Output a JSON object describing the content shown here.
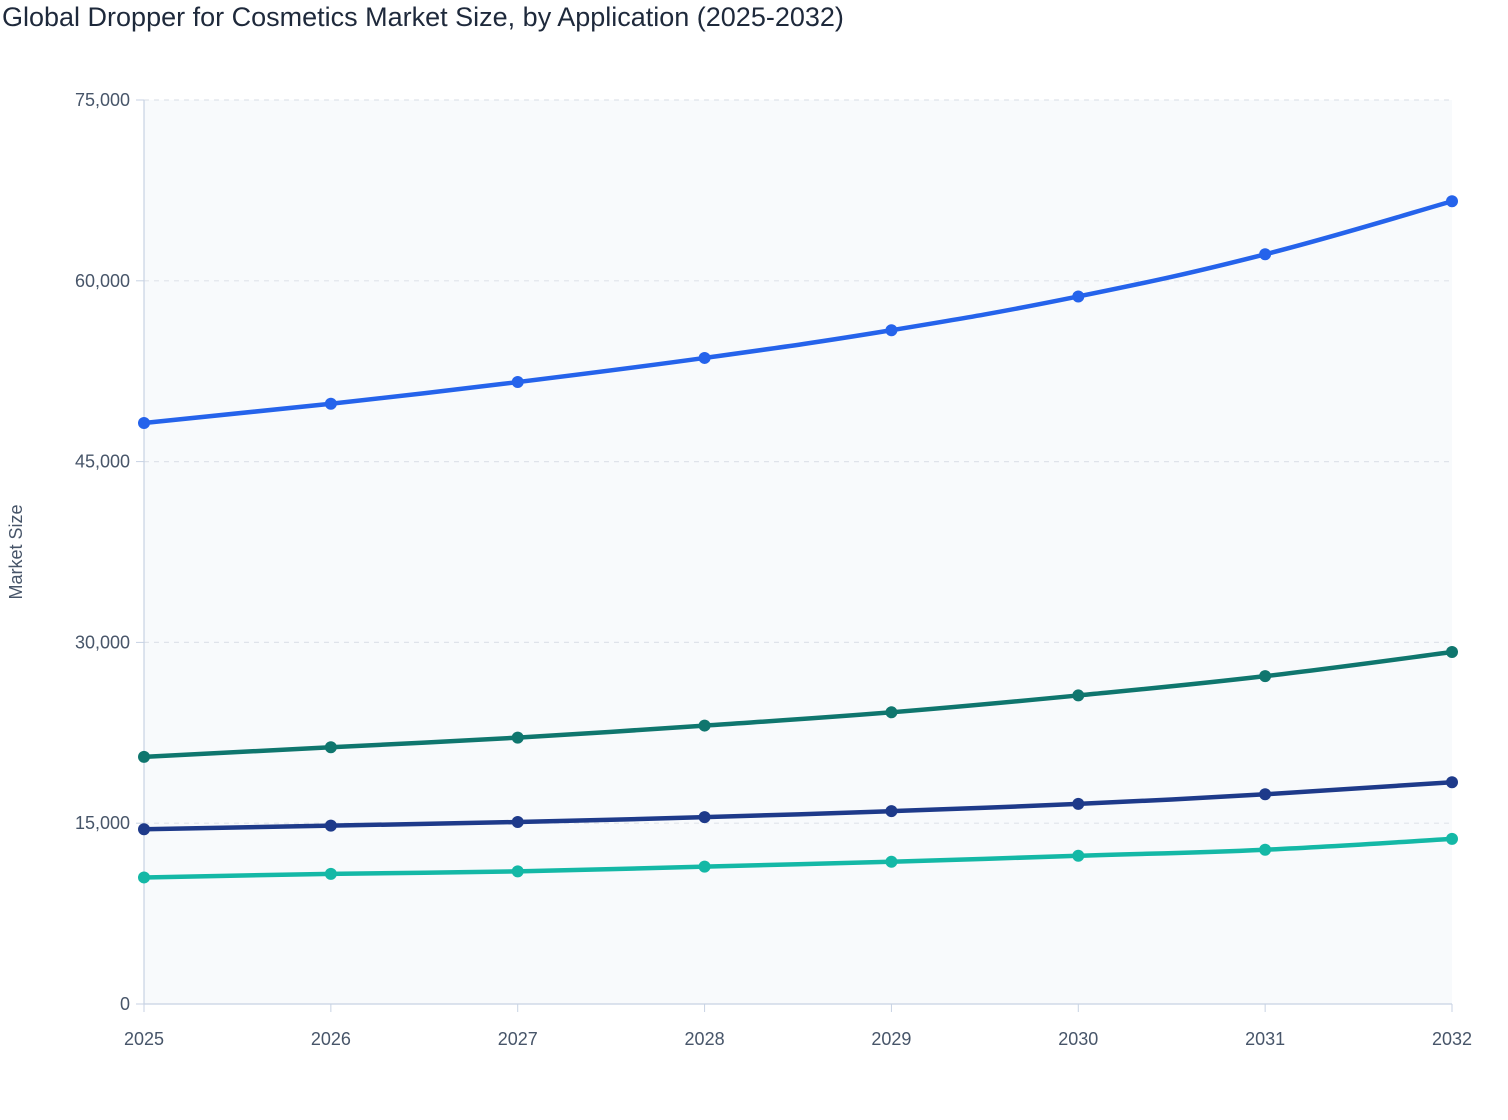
{
  "chart_data": {
    "type": "line",
    "title": "Global Dropper for Cosmetics Market Size, by Application (2025-2032)",
    "xlabel": "",
    "ylabel": "Market Size",
    "x": [
      "2025",
      "2026",
      "2027",
      "2028",
      "2029",
      "2030",
      "2031",
      "2032"
    ],
    "ylim": [
      0,
      75000
    ],
    "yticks": [
      0,
      15000,
      30000,
      45000,
      60000,
      75000
    ],
    "ytick_labels": [
      "0",
      "15,000",
      "30,000",
      "45,000",
      "60,000",
      "75,000"
    ],
    "grid": true,
    "legend": "none",
    "series": [
      {
        "name": "Series 1",
        "color": "#2563eb",
        "values": [
          48200,
          49800,
          51600,
          53600,
          55900,
          58700,
          62200,
          66600
        ]
      },
      {
        "name": "Series 2",
        "color": "#0f766e",
        "values": [
          20500,
          21300,
          22100,
          23100,
          24200,
          25600,
          27200,
          29200
        ]
      },
      {
        "name": "Series 3",
        "color": "#1e3a8a",
        "values": [
          14500,
          14800,
          15100,
          15500,
          16000,
          16600,
          17400,
          18400
        ]
      },
      {
        "name": "Series 4",
        "color": "#14b8a6",
        "values": [
          10500,
          10800,
          11000,
          11400,
          11800,
          12300,
          12800,
          13700
        ]
      }
    ]
  }
}
